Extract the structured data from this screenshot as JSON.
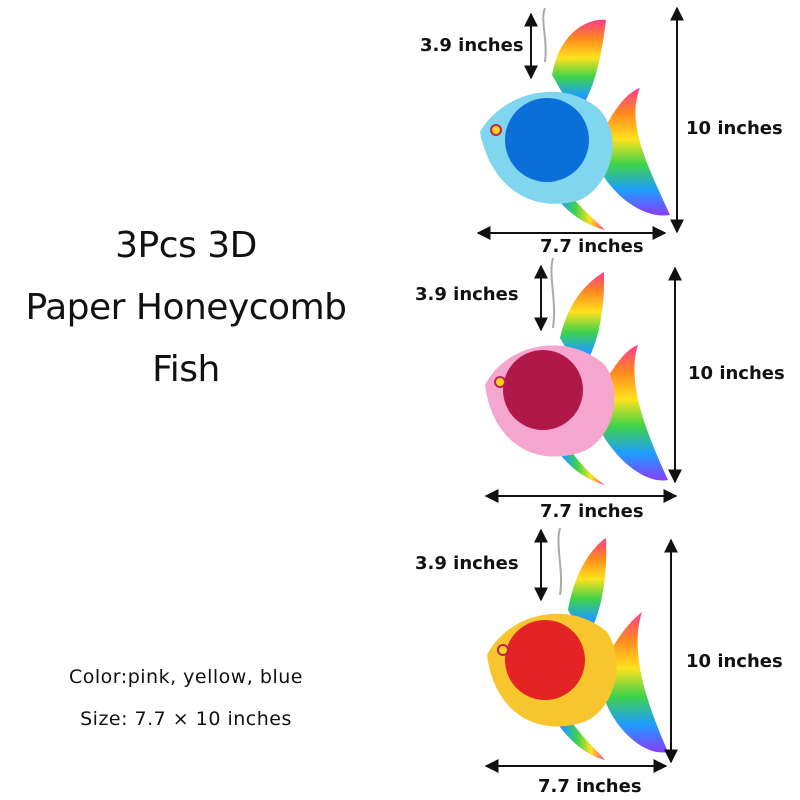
{
  "title": {
    "line1": "3Pcs 3D",
    "line2": "Paper Honeycomb",
    "line3": "Fish"
  },
  "color_label": "Color:pink, yellow, blue",
  "size_label": "Size: 7.7 × 10 inches",
  "fish": [
    {
      "color": "blue",
      "ball_color": "#0a6fd8",
      "body_color": "#7fd6ee",
      "height_label": "3.9 inches",
      "total_height_label": "10 inches",
      "width_label": "7.7 inches"
    },
    {
      "color": "pink",
      "ball_color": "#b0184a",
      "body_color": "#f5a6cf",
      "height_label": "3.9 inches",
      "total_height_label": "10 inches",
      "width_label": "7.7 inches"
    },
    {
      "color": "yellow",
      "ball_color": "#e42424",
      "body_color": "#f7c52e",
      "height_label": "3.9 inches",
      "total_height_label": "10 inches",
      "width_label": "7.7 inches"
    }
  ]
}
